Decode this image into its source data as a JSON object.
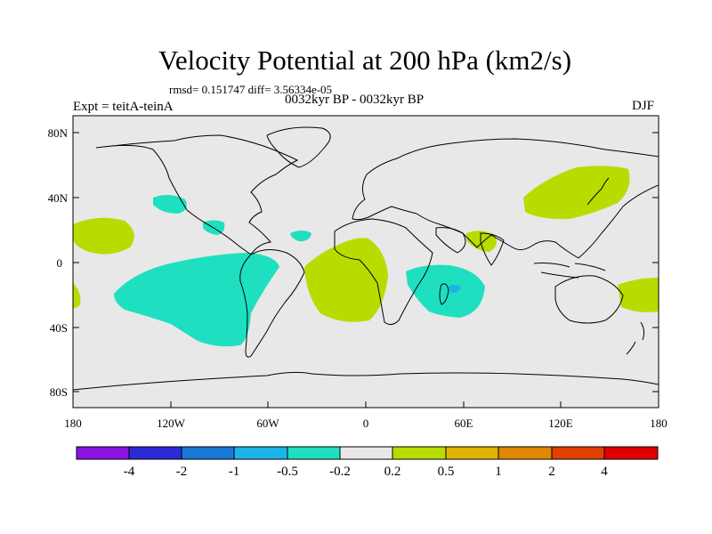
{
  "title": "Velocity Potential at 200 hPa (km2/s)",
  "stats_line": "rmsd= 0.151747 diff= 3.56334e-05",
  "experiment": "Expt = teitA-teinA",
  "period": "0032kyr BP - 0032kyr BP",
  "season": "DJF",
  "lat_labels": [
    "80N",
    "40N",
    "0",
    "40S",
    "80S"
  ],
  "lon_labels": [
    "180",
    "120W",
    "60W",
    "0",
    "60E",
    "120E",
    "180"
  ],
  "colorbar": {
    "labels": [
      "-4",
      "-2",
      "-1",
      "-0.5",
      "-0.2",
      "0.2",
      "0.5",
      "1",
      "2",
      "4"
    ],
    "colors": [
      "#8a14e0",
      "#2b2bd6",
      "#1a78d6",
      "#1ab4e8",
      "#1ee0c0",
      "#e8e8e8",
      "#b8dc00",
      "#e0b400",
      "#e08800",
      "#e04000",
      "#e00000"
    ]
  },
  "colors": {
    "background": "#e8e8e8",
    "positive_0_2": "#b8dc00",
    "negative_0_2": "#1ee0c0",
    "negative_0_5": "#1ab4e8"
  }
}
